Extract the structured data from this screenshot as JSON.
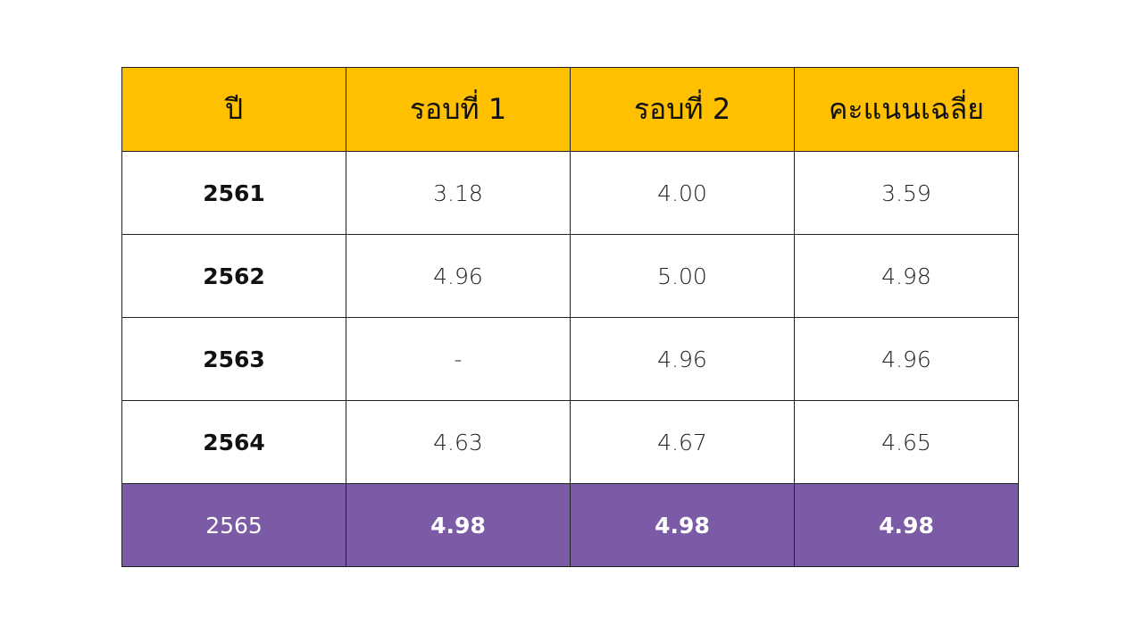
{
  "table": {
    "header": [
      "ปี",
      "รอบที่ 1",
      "รอบที่ 2",
      "คะแนนเฉลี่ย"
    ],
    "rows": [
      [
        "2561",
        "3.18",
        "4.00",
        "3.59"
      ],
      [
        "2562",
        "4.96",
        "5.00",
        "4.98"
      ],
      [
        "2563",
        "-",
        "4.96",
        "4.96"
      ],
      [
        "2564",
        "4.63",
        "4.67",
        "4.65"
      ],
      [
        "2565",
        "4.98",
        "4.98",
        "4.98"
      ]
    ]
  }
}
